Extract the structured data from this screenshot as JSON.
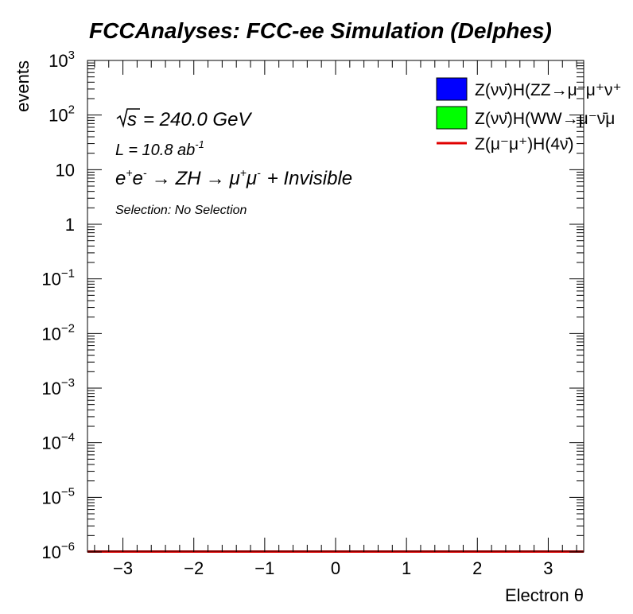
{
  "chart_data": {
    "type": "line",
    "title": "FCCAnalyses: FCC-ee Simulation (Delphes)",
    "xlabel": "Electron θ",
    "ylabel": "events",
    "xlim": [
      -3.5,
      3.5
    ],
    "ylim": [
      1e-06,
      1000
    ],
    "log_y": true,
    "grid": false,
    "legend_position": "top-right",
    "x_ticks": [
      {
        "value": -3,
        "label": "−3"
      },
      {
        "value": -2,
        "label": "−2"
      },
      {
        "value": -1,
        "label": "−1"
      },
      {
        "value": 0,
        "label": "0"
      },
      {
        "value": 1,
        "label": "1"
      },
      {
        "value": 2,
        "label": "2"
      },
      {
        "value": 3,
        "label": "3"
      }
    ],
    "y_ticks": [
      {
        "value": 1e-06,
        "base": "10",
        "exp": "−6"
      },
      {
        "value": 1e-05,
        "base": "10",
        "exp": "−5"
      },
      {
        "value": 0.0001,
        "base": "10",
        "exp": "−4"
      },
      {
        "value": 0.001,
        "base": "10",
        "exp": "−3"
      },
      {
        "value": 0.01,
        "base": "10",
        "exp": "−2"
      },
      {
        "value": 0.1,
        "base": "10",
        "exp": "−1"
      },
      {
        "value": 1,
        "base": "1",
        "exp": ""
      },
      {
        "value": 10,
        "base": "10",
        "exp": ""
      },
      {
        "value": 100,
        "base": "10",
        "exp": "2"
      },
      {
        "value": 1000,
        "base": "10",
        "exp": "3"
      }
    ],
    "annotations": {
      "sqrt_s": "= 240.0 GeV",
      "sqrt_s_symbol": "s",
      "lumi_prefix": "L = 10.8 ab",
      "lumi_exp": "-1",
      "process": {
        "e1": "e",
        "e1_sup": "+",
        "e2": "e",
        "e2_sup": "-",
        "arrow1": "→",
        "zh": "ZH",
        "arrow2": "→",
        "mu1": "μ",
        "mu1_sup": "+",
        "mu2": "μ",
        "mu2_sup": "-",
        "rest": "+ Invisible"
      },
      "selection": "Selection: No Selection"
    },
    "series": [
      {
        "name": "Z(νν̄)H(ZZ→μ⁻μ⁺ν⁺",
        "style": "fill",
        "color": "#0000ff",
        "x": [
          -3.5,
          3.5
        ],
        "y": [
          1e-06,
          1e-06
        ]
      },
      {
        "name": "Z(νν̄)H(WW→μ⁻ν̄μ",
        "style": "fill",
        "color": "#00ff00",
        "x": [
          -3.5,
          3.5
        ],
        "y": [
          1e-06,
          1e-06
        ]
      },
      {
        "name": "Z(μ⁻μ⁺)H(4ν̄)",
        "style": "line",
        "color": "#e00000",
        "x": [
          -3.5,
          3.5
        ],
        "y": [
          1e-06,
          1e-06
        ]
      }
    ]
  }
}
